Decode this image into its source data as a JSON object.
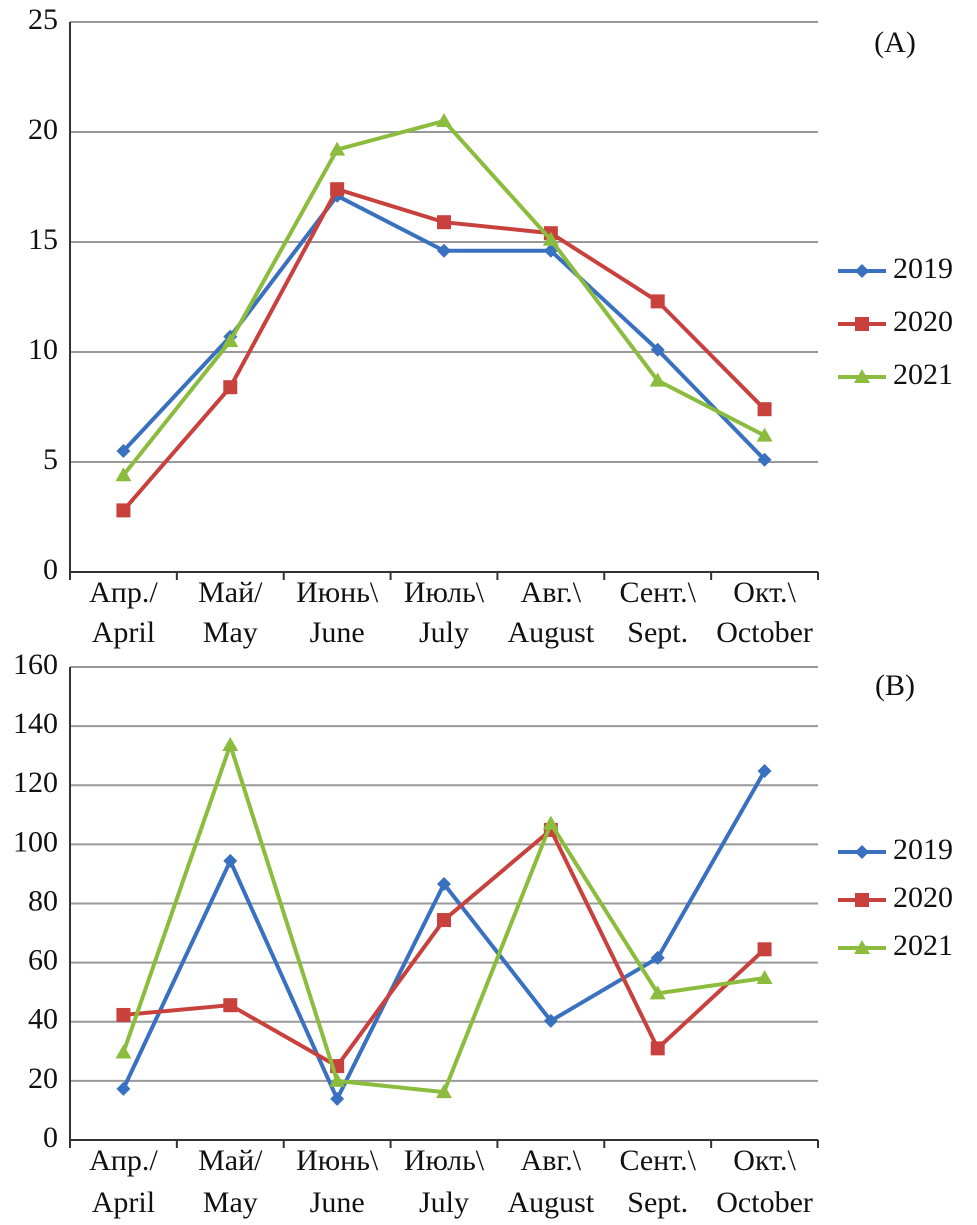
{
  "chart_data": [
    {
      "type": "line",
      "label": "(A)",
      "categories": [
        [
          "Апр./",
          "April"
        ],
        [
          "Май/",
          "May"
        ],
        [
          "Июнь\\",
          "June"
        ],
        [
          "Июль\\",
          "July"
        ],
        [
          "Авг.\\",
          "August"
        ],
        [
          "Сент.\\",
          "Sept."
        ],
        [
          "Окт.\\",
          "October"
        ]
      ],
      "series": [
        {
          "name": "2019",
          "color": "#3a70c0",
          "marker": "diamond",
          "values": [
            5.5,
            10.7,
            17.1,
            14.6,
            14.6,
            10.1,
            5.1
          ]
        },
        {
          "name": "2020",
          "color": "#c9413d",
          "marker": "square",
          "values": [
            2.8,
            8.4,
            17.4,
            15.9,
            15.4,
            12.3,
            7.4
          ]
        },
        {
          "name": "2021",
          "color": "#8cbc3e",
          "marker": "triangle",
          "values": [
            4.4,
            10.5,
            19.2,
            20.5,
            15.1,
            8.7,
            6.2
          ]
        }
      ],
      "ylim": [
        0,
        25
      ],
      "yticks": [
        0,
        5,
        10,
        15,
        20,
        25
      ],
      "grid": true,
      "legend": "right"
    },
    {
      "type": "line",
      "label": "(B)",
      "categories": [
        [
          "Апр./",
          "April"
        ],
        [
          "Май/",
          "May"
        ],
        [
          "Июнь\\",
          "June"
        ],
        [
          "Июль\\",
          "July"
        ],
        [
          "Авг.\\",
          "August"
        ],
        [
          "Сент.\\",
          "Sept."
        ],
        [
          "Окт.\\",
          "October"
        ]
      ],
      "series": [
        {
          "name": "2019",
          "color": "#3a70c0",
          "marker": "diamond",
          "values": [
            17.3,
            94.4,
            13.9,
            86.6,
            40.3,
            61.6,
            124.8
          ]
        },
        {
          "name": "2020",
          "color": "#c9413d",
          "marker": "square",
          "values": [
            42.3,
            45.6,
            25,
            74.4,
            104.9,
            31,
            64.5
          ]
        },
        {
          "name": "2021",
          "color": "#8cbc3e",
          "marker": "triangle",
          "values": [
            29.6,
            133.6,
            20,
            16.2,
            107,
            49.6,
            54.8
          ]
        }
      ],
      "ylim": [
        0,
        160
      ],
      "yticks": [
        0,
        20,
        40,
        60,
        80,
        100,
        120,
        140,
        160
      ],
      "grid": true,
      "legend": "right"
    }
  ]
}
